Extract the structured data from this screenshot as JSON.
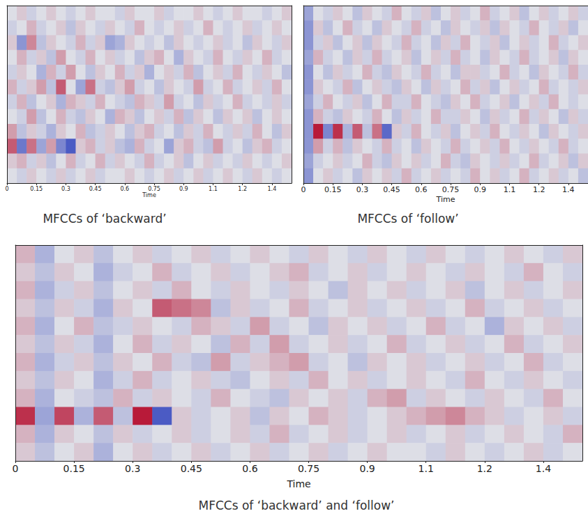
{
  "chart_data": [
    {
      "type": "heatmap",
      "title": "MFCCs of ‘backward’",
      "x_label": "Time",
      "tick_labels": "x",
      "xlim": [
        0,
        1.45
      ],
      "xticks": [
        0,
        0.15,
        0.3,
        0.45,
        0.6,
        0.75,
        0.9,
        {
          "value": 1.05,
          "label": "1.1"
        },
        1.2,
        {
          "value": 1.35,
          "label": "1.4"
        }
      ],
      "zlim": [
        -10,
        10
      ],
      "x": [
        0.025,
        0.075,
        0.125,
        0.175,
        0.225,
        0.275,
        0.325,
        0.375,
        0.425,
        0.475,
        0.525,
        0.575,
        0.625,
        0.675,
        0.725,
        0.775,
        0.825,
        0.875,
        0.925,
        0.975,
        1.025,
        1.075,
        1.125,
        1.175,
        1.225,
        1.275,
        1.325,
        1.375,
        1.425
      ],
      "cells": [
        [
          0,
          1,
          -1,
          0,
          1,
          0,
          -1,
          0,
          1,
          0,
          0,
          -1,
          1,
          0,
          0,
          1,
          -1,
          0,
          0,
          1,
          0,
          -1,
          0,
          1,
          0,
          0,
          -1,
          0,
          1
        ],
        [
          -1,
          0,
          2,
          -1,
          0,
          1,
          -2,
          1,
          0,
          -1,
          1,
          0,
          -1,
          2,
          0,
          -1,
          0,
          1,
          -1,
          0,
          2,
          0,
          -1,
          0,
          1,
          -1,
          0,
          1,
          0
        ],
        [
          1,
          -5,
          4,
          -2,
          1,
          0,
          -1,
          2,
          -1,
          1,
          -4,
          -3,
          1,
          0,
          -1,
          0,
          -2,
          1,
          0,
          -1,
          0,
          1,
          -1,
          0,
          -2,
          1,
          0,
          -1,
          1
        ],
        [
          0,
          2,
          -1,
          1,
          -2,
          3,
          0,
          -1,
          2,
          0,
          1,
          -1,
          0,
          -2,
          1,
          2,
          0,
          -3,
          1,
          0,
          -1,
          2,
          0,
          -1,
          1,
          0,
          2,
          -1,
          0
        ],
        [
          -1,
          1,
          0,
          -3,
          2,
          -1,
          3,
          0,
          -2,
          1,
          0,
          2,
          -1,
          1,
          -3,
          0,
          1,
          -1,
          2,
          -2,
          0,
          1,
          -1,
          2,
          0,
          -1,
          1,
          0,
          -2
        ],
        [
          2,
          -1,
          1,
          3,
          -2,
          6,
          0,
          -4,
          5,
          -1,
          -2,
          1,
          3,
          -1,
          0,
          -2,
          1,
          0,
          -1,
          3,
          -1,
          0,
          2,
          -1,
          0,
          1,
          -1,
          2,
          0
        ],
        [
          -1,
          2,
          -2,
          0,
          1,
          -3,
          2,
          1,
          -1,
          2,
          0,
          -1,
          -2,
          2,
          1,
          -1,
          3,
          -1,
          0,
          -2,
          1,
          -1,
          0,
          2,
          -1,
          0,
          -1,
          1,
          -1
        ],
        [
          0,
          -1,
          3,
          -2,
          0,
          2,
          -1,
          -2,
          1,
          0,
          -3,
          2,
          1,
          -2,
          0,
          1,
          -1,
          2,
          -2,
          1,
          0,
          -2,
          1,
          0,
          1,
          -2,
          0,
          1,
          0
        ],
        [
          3,
          -2,
          1,
          -1,
          -3,
          1,
          0,
          2,
          -2,
          -1,
          1,
          0,
          -2,
          1,
          2,
          -1,
          0,
          -2,
          1,
          -1,
          2,
          0,
          -1,
          1,
          -1,
          2,
          0,
          -2,
          1
        ],
        [
          6,
          -7,
          5,
          -4,
          3,
          -6,
          -9,
          1,
          2,
          -1,
          1,
          -2,
          -3,
          2,
          -1,
          0,
          -4,
          1,
          2,
          -1,
          -2,
          3,
          -1,
          0,
          -2,
          1,
          2,
          -1,
          0
        ],
        [
          1,
          2,
          -1,
          1,
          -2,
          0,
          2,
          -1,
          0,
          2,
          -1,
          1,
          0,
          -1,
          2,
          -1,
          0,
          1,
          -2,
          0,
          1,
          -1,
          0,
          -1,
          1,
          0,
          -1,
          0,
          1
        ],
        [
          0,
          -1,
          1,
          0,
          -1,
          1,
          -1,
          0,
          1,
          -1,
          0,
          0,
          1,
          0,
          -1,
          0,
          1,
          -1,
          0,
          1,
          -1,
          0,
          1,
          0,
          -1,
          1,
          0,
          -1,
          0
        ]
      ]
    },
    {
      "type": "heatmap",
      "title": "MFCCs of ‘follow’",
      "x_label": "Time",
      "tick_labels": "x",
      "xlim": [
        0,
        1.45
      ],
      "xticks": [
        0,
        0.15,
        0.3,
        0.45,
        0.6,
        0.75,
        0.9,
        {
          "value": 1.05,
          "label": "1.1"
        },
        1.2,
        {
          "value": 1.35,
          "label": "1.4"
        }
      ],
      "zlim": [
        -10,
        10
      ],
      "x": [
        0.025,
        0.075,
        0.125,
        0.175,
        0.225,
        0.275,
        0.325,
        0.375,
        0.425,
        0.475,
        0.525,
        0.575,
        0.625,
        0.675,
        0.725,
        0.775,
        0.825,
        0.875,
        0.925,
        0.975,
        1.025,
        1.075,
        1.125,
        1.175,
        1.225,
        1.275,
        1.325,
        1.375,
        1.425
      ],
      "cells": [
        [
          -4,
          0,
          -1,
          1,
          0,
          -2,
          1,
          0,
          -1,
          2,
          0,
          -1,
          1,
          -2,
          0,
          1,
          -1,
          0,
          2,
          -1,
          0,
          1,
          -2,
          0,
          1,
          -1,
          0,
          1,
          -1
        ],
        [
          -5,
          1,
          -2,
          0,
          2,
          -1,
          0,
          -2,
          1,
          0,
          -1,
          2,
          -1,
          0,
          -2,
          1,
          0,
          -1,
          1,
          -2,
          1,
          0,
          -1,
          2,
          0,
          -1,
          1,
          -2,
          0
        ],
        [
          -5,
          -1,
          1,
          -2,
          0,
          1,
          -2,
          1,
          0,
          -1,
          2,
          -1,
          0,
          -2,
          1,
          -1,
          2,
          0,
          -1,
          1,
          -2,
          0,
          1,
          -1,
          0,
          2,
          -1,
          0,
          1
        ],
        [
          -4,
          2,
          -1,
          0,
          -2,
          1,
          -1,
          2,
          -1,
          0,
          1,
          -2,
          0,
          1,
          -1,
          2,
          -1,
          0,
          -2,
          1,
          0,
          -1,
          2,
          -1,
          0,
          1,
          -2,
          1,
          0
        ],
        [
          -5,
          0,
          -2,
          1,
          -1,
          0,
          2,
          -1,
          -2,
          1,
          0,
          -1,
          2,
          -1,
          0,
          -2,
          1,
          1,
          -1,
          0,
          2,
          -1,
          0,
          -2,
          1,
          0,
          -1,
          2,
          -1
        ],
        [
          -5,
          1,
          0,
          -1,
          2,
          -2,
          0,
          1,
          -1,
          -2,
          1,
          0,
          -2,
          1,
          -1,
          0,
          2,
          -1,
          1,
          -2,
          0,
          1,
          -1,
          0,
          2,
          -1,
          0,
          -1,
          1
        ],
        [
          -4,
          -1,
          2,
          0,
          -1,
          1,
          -2,
          0,
          2,
          -1,
          -1,
          2,
          0,
          -1,
          -2,
          1,
          0,
          2,
          -1,
          0,
          1,
          -2,
          0,
          1,
          -1,
          2,
          0,
          -1,
          0
        ],
        [
          -5,
          2,
          -1,
          -2,
          1,
          0,
          -1,
          2,
          0,
          -2,
          1,
          -1,
          0,
          2,
          -1,
          -1,
          1,
          0,
          -2,
          1,
          -1,
          0,
          2,
          -1,
          1,
          0,
          -2,
          1,
          -1
        ],
        [
          -5,
          9,
          -6,
          8,
          -3,
          6,
          -2,
          5,
          -8,
          1,
          -1,
          2,
          0,
          -1,
          1,
          -2,
          0,
          1,
          -1,
          2,
          0,
          -1,
          1,
          0,
          -2,
          1,
          0,
          -1,
          1
        ],
        [
          -5,
          3,
          -1,
          2,
          -2,
          1,
          0,
          -1,
          2,
          -1,
          0,
          -2,
          1,
          0,
          -1,
          2,
          -1,
          0,
          1,
          -1,
          2,
          0,
          -1,
          1,
          0,
          -1,
          2,
          -1,
          0
        ],
        [
          -4,
          -1,
          0,
          1,
          -1,
          0,
          2,
          -1,
          -2,
          1,
          0,
          1,
          -1,
          0,
          2,
          -1,
          -2,
          1,
          0,
          -1,
          1,
          -1,
          0,
          2,
          -1,
          0,
          1,
          -2,
          1
        ],
        [
          -5,
          0,
          1,
          -1,
          0,
          -2,
          1,
          0,
          1,
          -1,
          2,
          -1,
          0,
          1,
          -1,
          0,
          -1,
          2,
          0,
          1,
          -1,
          0,
          2,
          -1,
          0,
          1,
          -1,
          0,
          -2
        ]
      ]
    },
    {
      "type": "heatmap",
      "title": "MFCCs of ‘backward’ and ‘follow’",
      "x_label": "Time",
      "tick_labels": "x",
      "xlim": [
        0,
        1.45
      ],
      "xticks": [
        0,
        0.15,
        0.3,
        0.45,
        0.6,
        0.75,
        0.9,
        {
          "value": 1.05,
          "label": "1.1"
        },
        1.2,
        {
          "value": 1.35,
          "label": "1.4"
        }
      ],
      "zlim": [
        -10,
        10
      ],
      "x": [
        0.025,
        0.075,
        0.125,
        0.175,
        0.225,
        0.275,
        0.325,
        0.375,
        0.425,
        0.475,
        0.525,
        0.575,
        0.625,
        0.675,
        0.725,
        0.775,
        0.825,
        0.875,
        0.925,
        0.975,
        1.025,
        1.075,
        1.125,
        1.175,
        1.225,
        1.275,
        1.325,
        1.375,
        1.425
      ],
      "cells": [
        [
          2,
          -3,
          0,
          1,
          -2,
          0,
          1,
          -1,
          0,
          1,
          -1,
          0,
          1,
          0,
          -1,
          1,
          0,
          -1,
          1,
          0,
          -1,
          1,
          0,
          -1,
          0,
          1,
          0,
          -1,
          1
        ],
        [
          1,
          -2,
          1,
          0,
          -3,
          -1,
          0,
          2,
          -1,
          0,
          1,
          -1,
          0,
          1,
          2,
          -1,
          0,
          1,
          -1,
          0,
          1,
          0,
          -1,
          1,
          0,
          -1,
          2,
          0,
          -1
        ],
        [
          2,
          -3,
          -1,
          1,
          -2,
          0,
          1,
          -1,
          2,
          0,
          -1,
          1,
          0,
          -1,
          1,
          0,
          -2,
          1,
          0,
          1,
          -1,
          0,
          1,
          -2,
          0,
          1,
          -1,
          0,
          1
        ],
        [
          1,
          -2,
          1,
          -1,
          -3,
          1,
          0,
          6,
          5,
          4,
          -2,
          1,
          -1,
          0,
          2,
          -1,
          0,
          1,
          -1,
          0,
          1,
          -1,
          0,
          2,
          -1,
          0,
          1,
          -1,
          0
        ],
        [
          2,
          -3,
          0,
          2,
          -2,
          -1,
          1,
          0,
          -1,
          2,
          1,
          -1,
          3,
          -1,
          0,
          -2,
          1,
          0,
          1,
          -1,
          0,
          2,
          -1,
          0,
          -3,
          1,
          0,
          1,
          -1
        ],
        [
          1,
          -2,
          1,
          -1,
          -3,
          0,
          2,
          -1,
          1,
          0,
          -2,
          2,
          -1,
          3,
          -1,
          0,
          1,
          -1,
          0,
          2,
          -1,
          0,
          1,
          -1,
          0,
          2,
          -1,
          0,
          1
        ],
        [
          2,
          -3,
          -1,
          1,
          -2,
          1,
          0,
          2,
          -1,
          -2,
          3,
          -1,
          1,
          2,
          3,
          -1,
          0,
          -2,
          1,
          0,
          1,
          -1,
          0,
          1,
          -1,
          0,
          2,
          -1,
          0
        ],
        [
          1,
          -2,
          1,
          0,
          -3,
          -1,
          2,
          -1,
          0,
          1,
          -1,
          -2,
          0,
          1,
          -1,
          2,
          0,
          1,
          -1,
          0,
          1,
          0,
          -1,
          2,
          0,
          -1,
          1,
          0,
          -1
        ],
        [
          2,
          -3,
          0,
          -1,
          -2,
          2,
          -1,
          1,
          0,
          -1,
          2,
          0,
          -1,
          -2,
          1,
          0,
          1,
          -1,
          2,
          3,
          -1,
          1,
          0,
          -1,
          1,
          0,
          -1,
          2,
          0
        ],
        [
          8,
          -4,
          7,
          -3,
          6,
          -2,
          9,
          -9,
          1,
          -1,
          0,
          1,
          -2,
          1,
          0,
          2,
          1,
          -1,
          0,
          1,
          2,
          3,
          4,
          2,
          1,
          -1,
          0,
          1,
          -1
        ],
        [
          2,
          -3,
          1,
          0,
          -2,
          1,
          -1,
          0,
          1,
          -1,
          0,
          1,
          -1,
          2,
          -1,
          0,
          1,
          -1,
          0,
          1,
          -1,
          0,
          1,
          -1,
          0,
          1,
          0,
          -1,
          2
        ],
        [
          1,
          -2,
          0,
          1,
          -3,
          0,
          1,
          -1,
          0,
          1,
          -1,
          0,
          1,
          -1,
          0,
          1,
          -1,
          0,
          1,
          0,
          0,
          -1,
          1,
          0,
          -1,
          0,
          1,
          -1,
          0
        ]
      ]
    }
  ]
}
